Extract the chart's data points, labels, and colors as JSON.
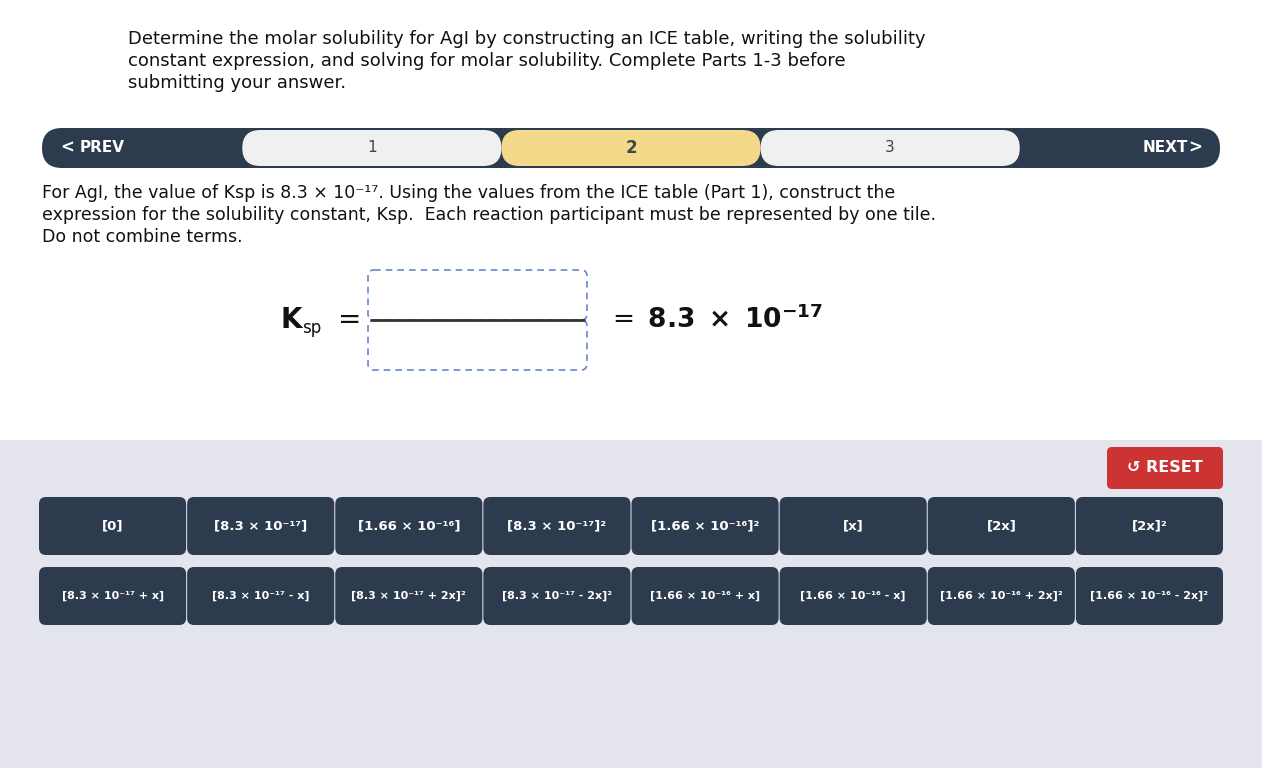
{
  "bg_white": "#ffffff",
  "bg_gray": "#e4e4ec",
  "nav_dark": "#2d3b4e",
  "nav_text": "#ffffff",
  "title_line1": "Determine the molar solubility for AgI by constructing an ICE table, writing the solubility",
  "title_line2": "constant expression, and solving for molar solubility. Complete Parts 1-3 before",
  "title_line3": "submitting your answer.",
  "body_line1": "For AgI, the value of Ksp is 8.3 × 10⁻¹⁷. Using the values from the ICE table (Part 1), construct the",
  "body_line2": "expression for the solubility constant, Ksp.  Each reaction participant must be represented by one tile.",
  "body_line3": "Do not combine terms.",
  "reset_color": "#cc3333",
  "reset_text": "↺ RESET",
  "button_dark": "#2d3b4e",
  "button_text_color": "#ffffff",
  "nav_highlight": "#f5d98a",
  "nav_light": "#f0f0f0",
  "row1_buttons": [
    "[0]",
    "[8.3 × 10⁻¹⁷]",
    "[1.66 × 10⁻¹⁶]",
    "[8.3 × 10⁻¹⁷]²",
    "[1.66 × 10⁻¹⁶]²",
    "[x]",
    "[2x]",
    "[2x]²"
  ],
  "row2_buttons": [
    "[8.3 × 10⁻¹⁷ + x]",
    "[8.3 × 10⁻¹⁷ - x]",
    "[8.3 × 10⁻¹⁷ + 2x]²",
    "[8.3 × 10⁻¹⁷ - 2x]²",
    "[1.66 × 10⁻¹⁶ + x]",
    "[1.66 × 10⁻¹⁶ - x]",
    "[1.66 × 10⁻¹⁶ + 2x]²",
    "[1.66 × 10⁻¹⁶ - 2x]²"
  ],
  "fig_w": 12.62,
  "fig_h": 7.68,
  "dpi": 100
}
